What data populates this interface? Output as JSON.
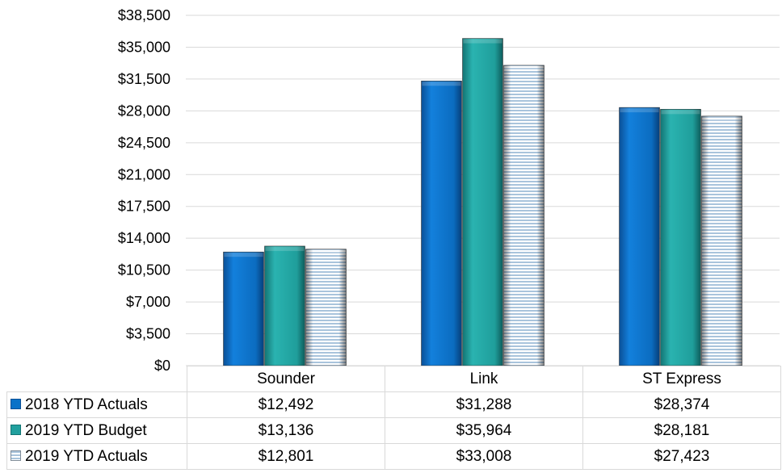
{
  "chart_data": {
    "type": "bar",
    "categories": [
      "Sounder",
      "Link",
      "ST Express"
    ],
    "series": [
      {
        "name": "2018 YTD Actuals",
        "values": [
          12492,
          31288,
          28374
        ],
        "display": [
          "$12,492",
          "$31,288",
          "$28,374"
        ],
        "color": "#0a72c8"
      },
      {
        "name": "2019 YTD Budget",
        "values": [
          13136,
          35964,
          28181
        ],
        "display": [
          "$13,136",
          "$35,964",
          "$28,181"
        ],
        "color": "#21a09e"
      },
      {
        "name": "2019 YTD Actuals",
        "values": [
          12801,
          33008,
          27423
        ],
        "display": [
          "$12,801",
          "$33,008",
          "$27,423"
        ],
        "color": "#a9c4dc"
      }
    ],
    "yticks": [
      "$0",
      "$3,500",
      "$7,000",
      "$10,500",
      "$14,000",
      "$17,500",
      "$21,000",
      "$24,500",
      "$28,000",
      "$31,500",
      "$35,000",
      "$38,500"
    ],
    "ylim": [
      0,
      38500
    ],
    "grid": true,
    "legend": "data-table"
  }
}
